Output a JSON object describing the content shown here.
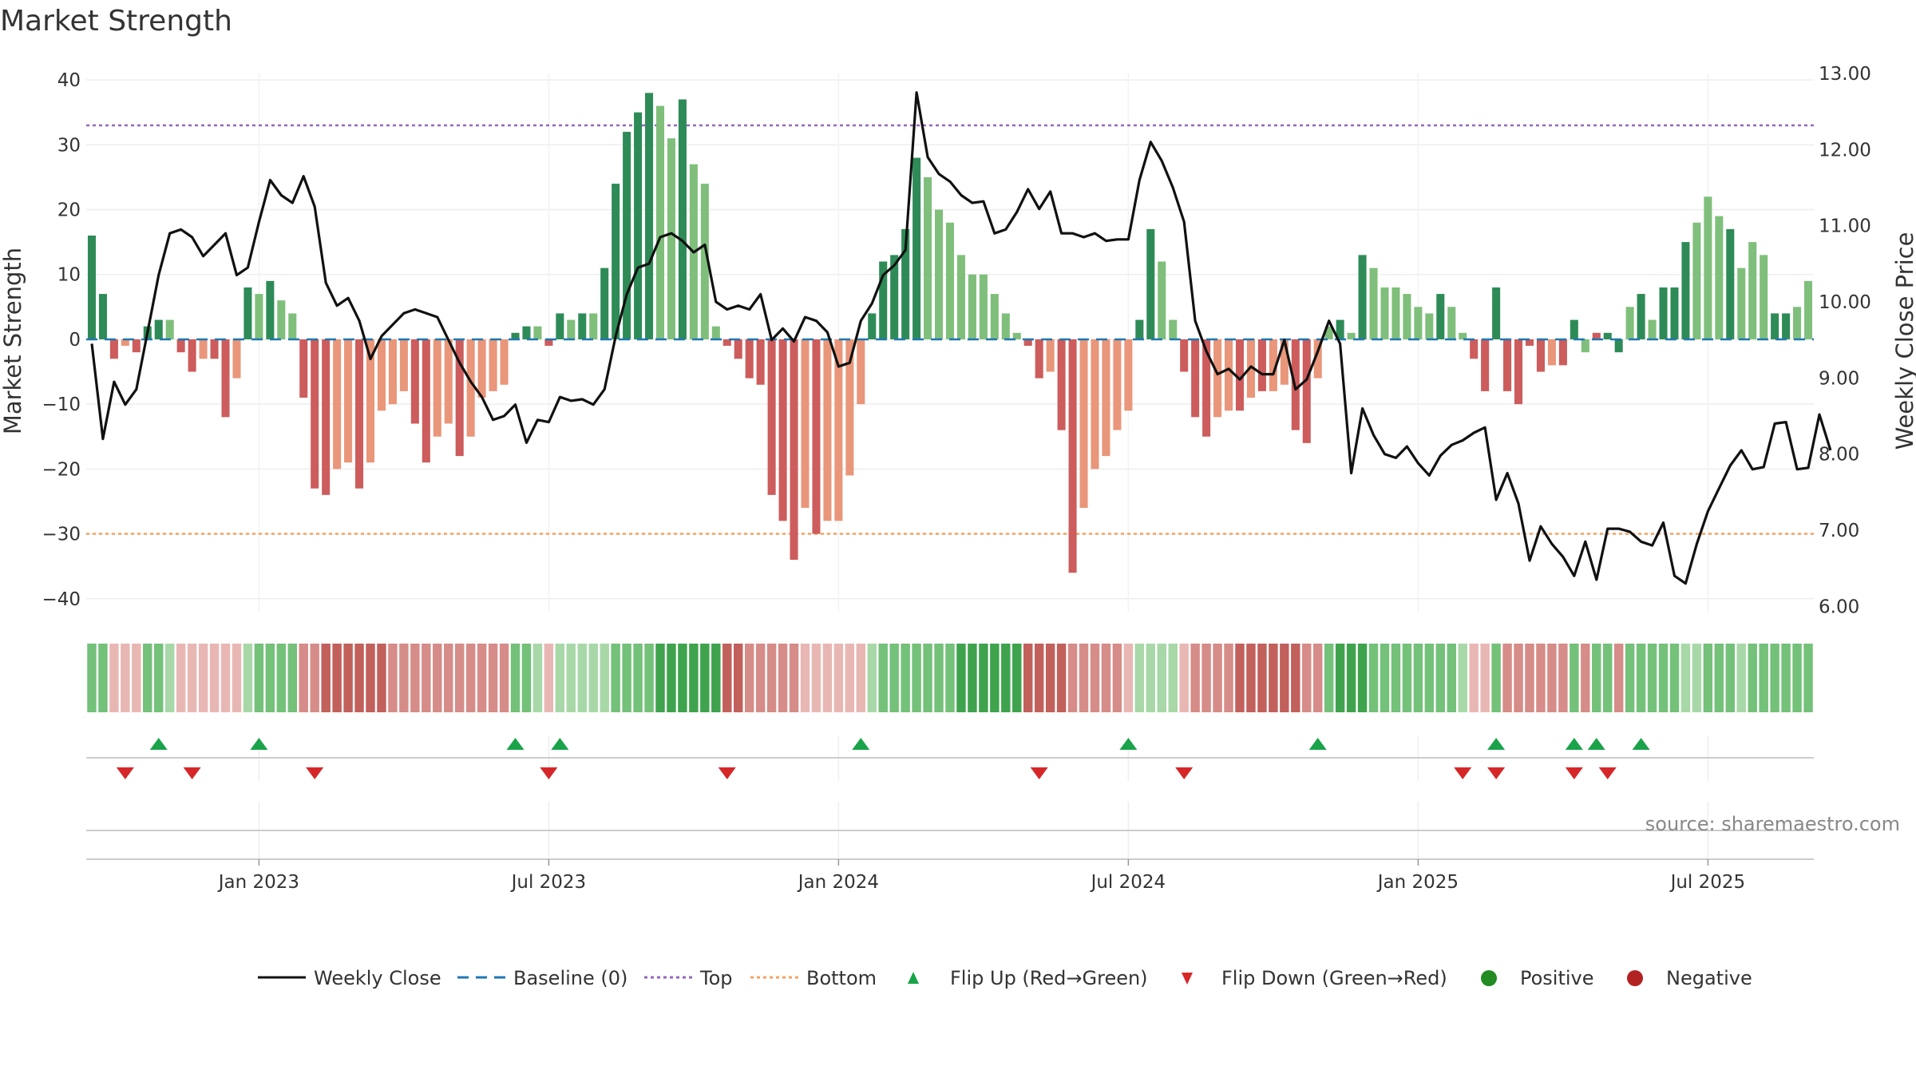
{
  "chart_data": {
    "type": "bar+line",
    "title": "Market Strength",
    "ylabel_left": "Market Strength",
    "ylabel_right": "Weekly Close Price",
    "ylim_left": [
      -42,
      41
    ],
    "ylim_right": [
      5.93,
      13.0
    ],
    "yticks_left": [
      40,
      30,
      20,
      10,
      0,
      -10,
      -20,
      -30,
      -40
    ],
    "ytick_labels_left": [
      "40",
      "30",
      "20",
      "10",
      "0",
      "−10",
      "−20",
      "−30",
      "−40"
    ],
    "yticks_right": [
      13,
      12,
      11,
      10,
      9,
      8,
      7,
      6
    ],
    "ytick_labels_right": [
      "13.00",
      "12.00",
      "11.00",
      "10.00",
      "9.00",
      "8.00",
      "7.00",
      "6.00"
    ],
    "x_tick_positions": [
      15,
      41,
      67,
      93,
      119,
      145
    ],
    "x_tick_labels": [
      "Jan 2023",
      "Jul 2023",
      "Jan 2024",
      "Jul 2024",
      "Jan 2025",
      "Jul 2025"
    ],
    "top_level": 33,
    "bottom_level": -30,
    "strength": [
      16,
      7,
      -3,
      -1,
      -2,
      2,
      3,
      3,
      -2,
      -5,
      -3,
      -3,
      -12,
      -6,
      8,
      7,
      9,
      6,
      4,
      -9,
      -23,
      -24,
      -20,
      -19,
      -23,
      -19,
      -11,
      -10,
      -8,
      -13,
      -19,
      -15,
      -13,
      -18,
      -15,
      -9,
      -8,
      -7,
      1,
      2,
      2,
      -1,
      4,
      3,
      4,
      4,
      11,
      24,
      32,
      35,
      38,
      36,
      31,
      37,
      27,
      24,
      2,
      -1,
      -3,
      -6,
      -7,
      -24,
      -28,
      -34,
      -26,
      -30,
      -28,
      -28,
      -21,
      -10,
      4,
      12,
      13,
      17,
      28,
      25,
      20,
      18,
      13,
      10,
      10,
      7,
      4,
      1,
      -1,
      -6,
      -5,
      -14,
      -36,
      -26,
      -20,
      -18,
      -14,
      -11,
      3,
      17,
      12,
      3,
      -5,
      -12,
      -15,
      -12,
      -11,
      -11,
      -9,
      -8,
      -8,
      -7,
      -14,
      -16,
      -6,
      2,
      3,
      1,
      13,
      11,
      8,
      8,
      7,
      5,
      4,
      7,
      5,
      1,
      -3,
      -8,
      8,
      -8,
      -10,
      -1,
      -5,
      -4,
      -4,
      3,
      -2,
      1,
      1,
      -2,
      5,
      7,
      3,
      8,
      8,
      15,
      18,
      22,
      19,
      17,
      11,
      15,
      13,
      4,
      4,
      5,
      9
    ],
    "close": [
      9.45,
      8.2,
      8.95,
      8.65,
      8.85,
      9.6,
      10.35,
      10.9,
      10.95,
      10.85,
      10.6,
      10.75,
      10.9,
      10.35,
      10.45,
      11.05,
      11.6,
      11.4,
      11.3,
      11.65,
      11.25,
      10.25,
      9.95,
      10.05,
      9.75,
      9.25,
      9.55,
      9.7,
      9.85,
      9.9,
      9.85,
      9.8,
      9.5,
      9.2,
      8.95,
      8.75,
      8.45,
      8.5,
      8.65,
      8.15,
      8.45,
      8.42,
      8.75,
      8.7,
      8.72,
      8.65,
      8.85,
      9.55,
      10.1,
      10.45,
      10.5,
      10.85,
      10.9,
      10.8,
      10.65,
      10.75,
      10.0,
      9.9,
      9.95,
      9.9,
      10.1,
      9.5,
      9.65,
      9.48,
      9.8,
      9.75,
      9.6,
      9.15,
      9.2,
      9.75,
      9.98,
      10.35,
      10.48,
      10.68,
      12.75,
      11.9,
      11.68,
      11.58,
      11.4,
      11.3,
      11.32,
      10.9,
      10.95,
      11.18,
      11.48,
      11.22,
      11.45,
      10.9,
      10.9,
      10.85,
      10.9,
      10.8,
      10.82,
      10.82,
      11.6,
      12.1,
      11.85,
      11.5,
      11.05,
      9.75,
      9.35,
      9.05,
      9.12,
      8.98,
      9.15,
      9.05,
      9.05,
      9.5,
      8.85,
      8.98,
      9.35,
      9.75,
      9.45,
      7.75,
      8.6,
      8.25,
      8.0,
      7.95,
      8.1,
      7.88,
      7.72,
      7.98,
      8.12,
      8.18,
      8.28,
      8.35,
      7.4,
      7.75,
      7.35,
      6.6,
      7.05,
      6.82,
      6.65,
      6.4,
      6.85,
      6.35,
      7.02,
      7.02,
      6.98,
      6.85,
      6.8,
      7.1,
      6.4,
      6.3,
      6.82,
      7.25,
      7.55,
      7.85,
      8.05,
      7.8,
      7.83,
      8.4,
      8.42,
      7.8,
      7.82,
      8.52,
      8.05
    ],
    "bar_colors": [
      "dg",
      "dg",
      "dr",
      "lr",
      "dr",
      "dg",
      "dg",
      "lg",
      "dr",
      "dr",
      "lr",
      "dr",
      "dr",
      "lr",
      "dg",
      "lg",
      "dg",
      "lg",
      "lg",
      "dr",
      "dr",
      "dr",
      "lr",
      "lr",
      "dr",
      "lr",
      "lr",
      "lr",
      "lr",
      "dr",
      "dr",
      "lr",
      "lr",
      "dr",
      "lr",
      "lr",
      "lr",
      "lr",
      "dg",
      "dg",
      "lg",
      "dr",
      "dg",
      "lg",
      "dg",
      "lg",
      "dg",
      "dg",
      "dg",
      "dg",
      "dg",
      "lg",
      "lg",
      "dg",
      "lg",
      "lg",
      "lg",
      "dr",
      "dr",
      "dr",
      "dr",
      "dr",
      "dr",
      "dr",
      "lr",
      "dr",
      "lr",
      "lr",
      "lr",
      "lr",
      "dg",
      "dg",
      "dg",
      "dg",
      "dg",
      "lg",
      "lg",
      "lg",
      "lg",
      "lg",
      "lg",
      "lg",
      "lg",
      "lg",
      "dr",
      "dr",
      "lr",
      "dr",
      "dr",
      "lr",
      "lr",
      "lr",
      "lr",
      "lr",
      "dg",
      "dg",
      "lg",
      "lg",
      "dr",
      "dr",
      "dr",
      "lr",
      "lr",
      "dr",
      "lr",
      "dr",
      "lr",
      "lr",
      "dr",
      "dr",
      "lr",
      "lg",
      "dg",
      "lg",
      "dg",
      "lg",
      "lg",
      "lg",
      "lg",
      "lg",
      "lg",
      "dg",
      "lg",
      "lg",
      "dr",
      "dr",
      "dg",
      "dr",
      "dr",
      "dr",
      "dr",
      "lr",
      "dr",
      "dg",
      "lg",
      "dr",
      "dg",
      "dg",
      "lg",
      "dg",
      "lg",
      "dg",
      "dg",
      "dg",
      "lg",
      "lg",
      "lg",
      "dg",
      "lg",
      "lg",
      "lg",
      "dg",
      "dg"
    ],
    "band_intensity": [
      2,
      2,
      1,
      1,
      1,
      2,
      2,
      1,
      1,
      1,
      1,
      1,
      1,
      1,
      1,
      2,
      2,
      2,
      2,
      2,
      2,
      3,
      3,
      3,
      3,
      3,
      3,
      2,
      2,
      2,
      2,
      2,
      2,
      2,
      2,
      2,
      2,
      2,
      2,
      2,
      1,
      1,
      1,
      1,
      1,
      1,
      1,
      2,
      2,
      2,
      2,
      3,
      3,
      3,
      3,
      3,
      3,
      3,
      3,
      2,
      2,
      2,
      2,
      2,
      1,
      1,
      1,
      1,
      1,
      1,
      1,
      2,
      2,
      2,
      2,
      2,
      2,
      2,
      3,
      3,
      3,
      3,
      3,
      3,
      3,
      3,
      3,
      3,
      2,
      2,
      2,
      2,
      2,
      1,
      1,
      1,
      1,
      1,
      1,
      2,
      2,
      2,
      2,
      3,
      3,
      3,
      3,
      3,
      3,
      2,
      2,
      2,
      3,
      3,
      3,
      2,
      2,
      2,
      2,
      2,
      2,
      2,
      2,
      1,
      1,
      1,
      2,
      2,
      2,
      2,
      2,
      2,
      2,
      2,
      2,
      2,
      2,
      2,
      2,
      2,
      2,
      2,
      2,
      1,
      1,
      2,
      2,
      2,
      1,
      2,
      2,
      2,
      2,
      2,
      2,
      2,
      2,
      2,
      2,
      2,
      2,
      2,
      2
    ],
    "flip_up_weeks": [
      6,
      15,
      38,
      42,
      69,
      93,
      110,
      126,
      133,
      135,
      139
    ],
    "flip_down_weeks": [
      3,
      9,
      20,
      41,
      57,
      85,
      98,
      123,
      126,
      133,
      136
    ],
    "legend": [
      "Weekly Close",
      "Baseline (0)",
      "Top",
      "Bottom",
      "Flip Up (Red→Green)",
      "Flip Down (Green→Red)",
      "Positive",
      "Negative"
    ]
  },
  "source": "source: sharemaestro.com",
  "colors": {
    "dark_green": "#2e8b57",
    "light_green": "#7fbf7b",
    "dark_red": "#cd5c5c",
    "light_red": "#e9967a",
    "top_line": "#9467bd",
    "bottom_line": "#f4a261",
    "baseline": "#1f77b4",
    "close_line": "#111111",
    "flip_up": "#1aa34a",
    "flip_down": "#d62728",
    "positive": "#228b22",
    "negative": "#b22222"
  }
}
